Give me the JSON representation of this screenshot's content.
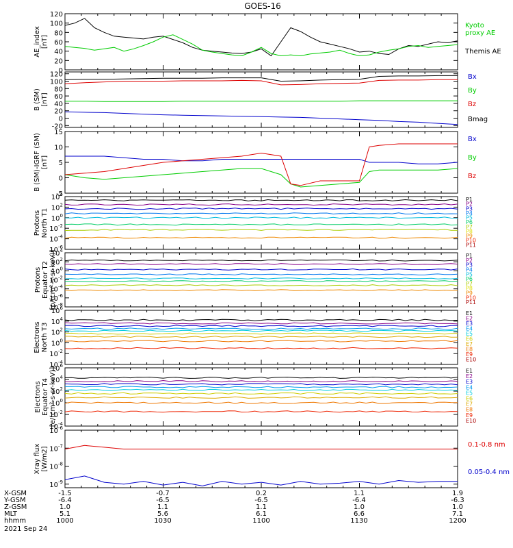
{
  "title": "GOES-16",
  "chart_data": [
    {
      "type": "line",
      "panel": "ae_index",
      "ylabel": [
        "AE_index",
        "[nT]"
      ],
      "ylim": [
        0,
        120
      ],
      "yticks": [
        "0",
        "20",
        "40",
        "60",
        "80",
        "100",
        "120"
      ],
      "legend": [
        {
          "label": "Kyoto proxy AE",
          "color": "#00cc00",
          "lines": [
            "Kyoto",
            "proxy AE"
          ]
        },
        {
          "label": "Themis AE",
          "color": "#000000",
          "lines": [
            "Themis AE"
          ]
        }
      ],
      "x": [
        1000,
        1003,
        1006,
        1009,
        1012,
        1015,
        1018,
        1021,
        1024,
        1027,
        1030,
        1033,
        1036,
        1039,
        1042,
        1045,
        1048,
        1051,
        1054,
        1057,
        1100,
        1103,
        1106,
        1109,
        1112,
        1115,
        1118,
        1121,
        1124,
        1127,
        1130,
        1133,
        1136,
        1139,
        1142,
        1145,
        1148,
        1151,
        1154,
        1157,
        1200
      ],
      "series": [
        {
          "name": "Themis AE",
          "color": "#000000",
          "values": [
            95,
            100,
            110,
            90,
            80,
            72,
            70,
            68,
            66,
            70,
            72,
            65,
            58,
            48,
            42,
            40,
            38,
            36,
            35,
            38,
            45,
            30,
            60,
            90,
            82,
            70,
            60,
            55,
            50,
            45,
            38,
            40,
            35,
            33,
            45,
            52,
            50,
            55,
            60,
            58,
            62
          ]
        },
        {
          "name": "Kyoto proxy AE",
          "color": "#00cc00",
          "values": [
            50,
            48,
            46,
            42,
            45,
            48,
            40,
            45,
            52,
            60,
            70,
            75,
            65,
            55,
            42,
            38,
            35,
            32,
            30,
            38,
            48,
            35,
            30,
            32,
            30,
            34,
            36,
            38,
            42,
            35,
            30,
            32,
            38,
            42,
            45,
            50,
            52,
            48,
            50,
            52,
            54
          ]
        }
      ]
    },
    {
      "type": "line",
      "panel": "b_sm",
      "ylabel": [
        "B (SM)",
        "[nT]"
      ],
      "ylim": [
        -25,
        125
      ],
      "yticks": [
        "-20",
        "0",
        "20",
        "40",
        "60",
        "80",
        "100",
        "120"
      ],
      "legend": [
        {
          "label": "Bx",
          "color": "#0000cc"
        },
        {
          "label": "By",
          "color": "#00cc00"
        },
        {
          "label": "Bz",
          "color": "#dd0000"
        },
        {
          "label": "Bmag",
          "color": "#000000"
        }
      ],
      "x": [
        1000,
        1006,
        1012,
        1018,
        1024,
        1030,
        1036,
        1042,
        1048,
        1054,
        1100,
        1106,
        1112,
        1118,
        1124,
        1130,
        1136,
        1142,
        1148,
        1154,
        1200
      ],
      "series": [
        {
          "name": "Bx",
          "color": "#0000cc",
          "values": [
            17,
            16,
            15,
            13,
            11,
            9,
            8,
            7,
            6,
            5,
            4,
            3,
            2,
            0,
            -2,
            -4,
            -6,
            -9,
            -11,
            -14,
            -17
          ]
        },
        {
          "name": "By",
          "color": "#00cc00",
          "values": [
            46,
            46,
            45,
            45,
            45,
            45,
            46,
            46,
            46,
            46,
            46,
            46,
            46,
            46,
            46,
            47,
            47,
            47,
            47,
            47,
            47
          ]
        },
        {
          "name": "Bz",
          "color": "#dd0000",
          "values": [
            93,
            96,
            98,
            100,
            100,
            100,
            101,
            101,
            101,
            102,
            101,
            90,
            91,
            93,
            94,
            95,
            102,
            103,
            103,
            104,
            104
          ]
        },
        {
          "name": "Bmag",
          "color": "#000000",
          "values": [
            104,
            105,
            105,
            106,
            107,
            108,
            108,
            108,
            109,
            109,
            109,
            100,
            101,
            103,
            104,
            105,
            113,
            114,
            114,
            115,
            115
          ]
        }
      ]
    },
    {
      "type": "line",
      "panel": "b_minus_igrf",
      "ylabel": [
        "B (SM)-IGRF (SM)",
        "[nT]"
      ],
      "ylim": [
        -5,
        15
      ],
      "yticks": [
        "-5",
        "0",
        "5",
        "10",
        "15"
      ],
      "legend": [
        {
          "label": "Bx",
          "color": "#0000cc"
        },
        {
          "label": "By",
          "color": "#00cc00"
        },
        {
          "label": "Bz",
          "color": "#dd0000"
        }
      ],
      "x": [
        1000,
        1006,
        1012,
        1018,
        1024,
        1030,
        1036,
        1042,
        1048,
        1054,
        1100,
        1106,
        1109,
        1112,
        1118,
        1124,
        1130,
        1133,
        1136,
        1142,
        1148,
        1154,
        1200
      ],
      "series": [
        {
          "name": "Bx",
          "color": "#0000cc",
          "values": [
            7,
            7,
            7,
            6.5,
            6,
            6,
            5.5,
            5.5,
            6,
            6,
            6,
            6,
            6,
            6,
            6,
            6,
            6,
            5,
            5,
            5,
            4.5,
            4.5,
            5
          ]
        },
        {
          "name": "By",
          "color": "#00cc00",
          "values": [
            1,
            0,
            -0.5,
            0,
            0.5,
            1,
            1.5,
            2,
            2.5,
            3,
            3,
            1,
            -2,
            -3,
            -2.5,
            -2,
            -1.5,
            2,
            2.5,
            2.5,
            2.5,
            2.5,
            3
          ]
        },
        {
          "name": "Bz",
          "color": "#dd0000",
          "values": [
            1,
            1.5,
            2,
            3,
            4,
            5,
            5.5,
            6,
            6.5,
            7,
            8,
            7,
            -2,
            -2.5,
            -1,
            -1,
            -1,
            10,
            10.5,
            11,
            11,
            11,
            11
          ]
        }
      ]
    },
    {
      "type": "line",
      "panel": "protons_t1",
      "log": true,
      "ylabel": [
        "Protons",
        "North T1"
      ],
      "ylim_exp": [
        -6,
        4
      ],
      "yticks": [
        {
          "base": "10",
          "exp": "4"
        },
        {
          "base": "10",
          "exp": "2"
        },
        {
          "base": "10",
          "exp": "0"
        },
        {
          "base": "10",
          "exp": "-2"
        },
        {
          "base": "10",
          "exp": "-4"
        },
        {
          "base": "10",
          "exp": "-6"
        }
      ],
      "legend": [
        {
          "label": "P1",
          "color": "#000000"
        },
        {
          "label": "P2",
          "color": "#880088"
        },
        {
          "label": "P3",
          "color": "#0000cc"
        },
        {
          "label": "P4",
          "color": "#0077ee"
        },
        {
          "label": "P5",
          "color": "#00bbdd"
        },
        {
          "label": "P6",
          "color": "#00cc66"
        },
        {
          "label": "P7",
          "color": "#aacc00"
        },
        {
          "label": "P8",
          "color": "#dddd00"
        },
        {
          "label": "P9",
          "color": "#ee8800"
        },
        {
          "label": "P10",
          "color": "#ee2200"
        },
        {
          "label": "P11",
          "color": "#aa0000"
        }
      ],
      "series": [
        {
          "name": "P1",
          "color": "#000000",
          "level": 3.3
        },
        {
          "name": "P2",
          "color": "#880088",
          "level": 2.5
        },
        {
          "name": "P3",
          "color": "#0000cc",
          "level": 1.7
        },
        {
          "name": "P4",
          "color": "#0077ee",
          "level": 0.8
        },
        {
          "name": "P5",
          "color": "#00bbdd",
          "level": 0.0
        },
        {
          "name": "P6",
          "color": "#00cc66",
          "level": -1.3
        },
        {
          "name": "P7",
          "color": "#aacc00",
          "level": -2.3
        },
        {
          "name": "P9",
          "color": "#ee8800",
          "level": -3.8
        }
      ]
    },
    {
      "type": "line",
      "panel": "protons_t2",
      "log": true,
      "ylabel": [
        "Protons",
        "Equator T2",
        "[p/(cm²-s-sr-keV)]"
      ],
      "ylim_exp": [
        -8,
        4
      ],
      "yticks": [
        {
          "base": "10",
          "exp": "4"
        },
        {
          "base": "10",
          "exp": "2"
        },
        {
          "base": "10",
          "exp": "0"
        },
        {
          "base": "10",
          "exp": "-2"
        },
        {
          "base": "10",
          "exp": "-4"
        },
        {
          "base": "10",
          "exp": "-6"
        },
        {
          "base": "10",
          "exp": "-8"
        }
      ],
      "legend": [
        {
          "label": "P1",
          "color": "#000000"
        },
        {
          "label": "P2",
          "color": "#880088"
        },
        {
          "label": "P3",
          "color": "#0000cc"
        },
        {
          "label": "P4",
          "color": "#0077ee"
        },
        {
          "label": "P5",
          "color": "#00bbdd"
        },
        {
          "label": "P6",
          "color": "#00cc66"
        },
        {
          "label": "P7",
          "color": "#aacc00"
        },
        {
          "label": "P8",
          "color": "#dddd00"
        },
        {
          "label": "P9",
          "color": "#ee8800"
        },
        {
          "label": "P10",
          "color": "#ee2200"
        },
        {
          "label": "P11",
          "color": "#aa0000"
        }
      ],
      "series": [
        {
          "name": "P1",
          "color": "#000000",
          "level": 2.3
        },
        {
          "name": "P2",
          "color": "#880088",
          "level": 1.5
        },
        {
          "name": "P3",
          "color": "#0000cc",
          "level": 0.3
        },
        {
          "name": "P4",
          "color": "#0077ee",
          "level": -0.8
        },
        {
          "name": "P5",
          "color": "#00bbdd",
          "level": -1.7
        },
        {
          "name": "P6",
          "color": "#00cc66",
          "level": -2.3
        },
        {
          "name": "P7",
          "color": "#aacc00",
          "level": -3.2
        },
        {
          "name": "P9",
          "color": "#ee8800",
          "level": -4.3
        }
      ]
    },
    {
      "type": "line",
      "panel": "electrons_t3",
      "log": true,
      "ylabel": [
        "Electrons",
        "North T3"
      ],
      "ylim_exp": [
        -4,
        6
      ],
      "yticks": [
        {
          "base": "10",
          "exp": "6"
        },
        {
          "base": "10",
          "exp": "4"
        },
        {
          "base": "10",
          "exp": "2"
        },
        {
          "base": "10",
          "exp": "0"
        },
        {
          "base": "10",
          "exp": "-2"
        },
        {
          "base": "10",
          "exp": "-4"
        }
      ],
      "legend": [
        {
          "label": "E1",
          "color": "#000000"
        },
        {
          "label": "E2",
          "color": "#880088"
        },
        {
          "label": "E3",
          "color": "#0000cc"
        },
        {
          "label": "E4",
          "color": "#0099ee"
        },
        {
          "label": "E5",
          "color": "#00ccdd"
        },
        {
          "label": "E6",
          "color": "#cccc00"
        },
        {
          "label": "E7",
          "color": "#ddaa00"
        },
        {
          "label": "E8",
          "color": "#ee7700"
        },
        {
          "label": "E9",
          "color": "#ee2200"
        },
        {
          "label": "E10",
          "color": "#aa0000"
        }
      ],
      "series": [
        {
          "name": "E1",
          "color": "#000000",
          "level": 4.2
        },
        {
          "name": "E2",
          "color": "#880088",
          "level": 3.6
        },
        {
          "name": "E3",
          "color": "#0000cc",
          "level": 3.1
        },
        {
          "name": "E4",
          "color": "#0099ee",
          "level": 2.6
        },
        {
          "name": "E5",
          "color": "#00ccdd",
          "level": 2.2
        },
        {
          "name": "E6",
          "color": "#cccc00",
          "level": 1.7
        },
        {
          "name": "E7",
          "color": "#ddaa00",
          "level": 1.1
        },
        {
          "name": "E8",
          "color": "#ee7700",
          "level": 0.3
        },
        {
          "name": "E9",
          "color": "#ee2200",
          "level": -1.0
        }
      ]
    },
    {
      "type": "line",
      "panel": "electrons_t4",
      "log": true,
      "ylabel": [
        "Electrons",
        "Equator T4",
        "[e/(cm²-s-sr-keV)]"
      ],
      "ylim_exp": [
        -4,
        6
      ],
      "yticks": [
        {
          "base": "10",
          "exp": "6"
        },
        {
          "base": "10",
          "exp": "4"
        },
        {
          "base": "10",
          "exp": "2"
        },
        {
          "base": "10",
          "exp": "0"
        },
        {
          "base": "10",
          "exp": "-2"
        },
        {
          "base": "10",
          "exp": "-4"
        }
      ],
      "legend": [
        {
          "label": "E1",
          "color": "#000000"
        },
        {
          "label": "E2",
          "color": "#880088"
        },
        {
          "label": "E3",
          "color": "#0000cc"
        },
        {
          "label": "E4",
          "color": "#0099ee"
        },
        {
          "label": "E5",
          "color": "#00ccdd"
        },
        {
          "label": "E6",
          "color": "#cccc00"
        },
        {
          "label": "E7",
          "color": "#ddaa00"
        },
        {
          "label": "E8",
          "color": "#ee7700"
        },
        {
          "label": "E9",
          "color": "#ee2200"
        },
        {
          "label": "E10",
          "color": "#aa0000"
        }
      ],
      "series": [
        {
          "name": "E1",
          "color": "#000000",
          "level": 4.3
        },
        {
          "name": "E2",
          "color": "#880088",
          "level": 3.7
        },
        {
          "name": "E3",
          "color": "#0000cc",
          "level": 3.2
        },
        {
          "name": "E4",
          "color": "#0099ee",
          "level": 2.7
        },
        {
          "name": "E5",
          "color": "#00ccdd",
          "level": 2.2
        },
        {
          "name": "E6",
          "color": "#cccc00",
          "level": 1.6
        },
        {
          "name": "E7",
          "color": "#ddaa00",
          "level": 0.9
        },
        {
          "name": "E8",
          "color": "#ee7700",
          "level": 0.0
        },
        {
          "name": "E9",
          "color": "#ee2200",
          "level": -1.5
        }
      ]
    },
    {
      "type": "line",
      "panel": "xray_flux",
      "log": true,
      "ylabel": [
        "Xray flux",
        "[W/m2]"
      ],
      "ylim_exp": [
        -9.2,
        -6.0
      ],
      "yticks": [
        {
          "base": "10",
          "exp": "-6"
        },
        {
          "base": "10",
          "exp": "-7"
        },
        {
          "base": "10",
          "exp": "-8"
        },
        {
          "base": "10",
          "exp": "-9"
        }
      ],
      "legend": [
        {
          "label": "0.1-0.8 nm",
          "color": "#dd0000"
        },
        {
          "label": "0.05-0.4 nm",
          "color": "#0000cc"
        }
      ],
      "x": [
        1000,
        1006,
        1012,
        1018,
        1024,
        1030,
        1036,
        1042,
        1048,
        1054,
        1100,
        1106,
        1112,
        1118,
        1124,
        1130,
        1136,
        1142,
        1148,
        1154,
        1200
      ],
      "series": [
        {
          "name": "0.1-0.8 nm",
          "color": "#dd0000",
          "values": [
            -7.05,
            -6.85,
            -6.95,
            -7.05,
            -7.05,
            -7.05,
            -7.05,
            -7.05,
            -7.05,
            -7.05,
            -7.05,
            -7.05,
            -7.05,
            -7.05,
            -7.05,
            -7.05,
            -7.05,
            -7.05,
            -7.05,
            -7.05,
            -7.05
          ]
        },
        {
          "name": "0.05-0.4 nm",
          "color": "#0000cc",
          "values": [
            -8.75,
            -8.55,
            -8.9,
            -9.0,
            -8.85,
            -9.05,
            -8.9,
            -9.1,
            -8.85,
            -9.0,
            -8.9,
            -9.05,
            -8.85,
            -9.0,
            -8.95,
            -8.85,
            -9.0,
            -8.8,
            -8.9,
            -8.85,
            -8.85
          ]
        }
      ]
    }
  ],
  "x_axis": {
    "row_labels": [
      "X-GSM",
      "Y-GSM",
      "Z-GSM",
      "MLT",
      "hhmm"
    ],
    "columns": [
      [
        "-1.5",
        "-6.4",
        "1.0",
        "5.1",
        "1000"
      ],
      [
        "-0.7",
        "-6.5",
        "1.1",
        "5.6",
        "1030"
      ],
      [
        "0.2",
        "-6.5",
        "1.1",
        "6.1",
        "1100"
      ],
      [
        "1.1",
        "-6.4",
        "1.0",
        "6.6",
        "1130"
      ],
      [
        "1.9",
        "-6.3",
        "1.0",
        "7.1",
        "1200"
      ]
    ],
    "date": "2021 Sep 24"
  }
}
